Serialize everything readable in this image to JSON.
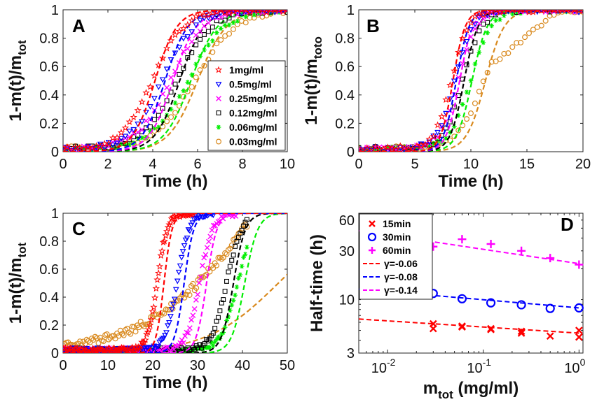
{
  "chart_data": [
    {
      "panel": "A",
      "type": "scatter",
      "xlabel": "Time (h)",
      "ylabel_main": "1-m(t)/m",
      "ylabel_sub": "tot",
      "xlim": [
        0,
        10
      ],
      "ylim": [
        0,
        1
      ],
      "xticks": [
        0,
        2,
        4,
        6,
        8,
        10
      ],
      "yticks": [
        0,
        0.2,
        0.4,
        0.6,
        0.8,
        1
      ],
      "xtick_labels": [
        "0",
        "2",
        "4",
        "6",
        "8",
        "10"
      ],
      "ytick_labels": [
        "0",
        "0.2",
        "0.4",
        "0.6",
        "0.8",
        "1"
      ],
      "legend_position": "right",
      "series": [
        {
          "name": "1mg/ml",
          "color": "#ff0000",
          "marker": "star",
          "half_time": 4.0,
          "k": 1.45
        },
        {
          "name": "0.5mg/ml",
          "color": "#0000ff",
          "marker": "triangle-down",
          "half_time": 4.45,
          "k": 1.4
        },
        {
          "name": "0.25mg/ml",
          "color": "#ff00ff",
          "marker": "x",
          "half_time": 4.8,
          "k": 1.35
        },
        {
          "name": "0.12mg/ml",
          "color": "#000000",
          "marker": "square",
          "half_time": 5.1,
          "k": 1.3
        },
        {
          "name": "0.06mg/ml",
          "color": "#00ee00",
          "marker": "asterisk",
          "half_time": 5.6,
          "k": 1.2
        },
        {
          "name": "0.03mg/ml",
          "color": "#d98a1f",
          "marker": "circle",
          "half_time": 5.9,
          "k": 1.1
        }
      ]
    },
    {
      "panel": "B",
      "type": "scatter",
      "xlabel": "Time (h)",
      "ylabel_main": "1-m(t)/m",
      "ylabel_sub": "toto",
      "xlim": [
        0,
        20
      ],
      "ylim": [
        0,
        1
      ],
      "xticks": [
        0,
        5,
        10,
        15,
        20
      ],
      "yticks": [
        0,
        0.2,
        0.4,
        0.6,
        0.8,
        1
      ],
      "xtick_labels": [
        "0",
        "5",
        "10",
        "15",
        "20"
      ],
      "ytick_labels": [
        "0",
        "0.2",
        "0.4",
        "0.6",
        "0.8",
        "1"
      ],
      "series": [
        {
          "name": "1mg/ml",
          "color": "#ff0000",
          "marker": "star",
          "half_time": 8.3,
          "k": 1.3
        },
        {
          "name": "0.5mg/ml",
          "color": "#0000ff",
          "marker": "triangle-down",
          "half_time": 8.6,
          "k": 1.25
        },
        {
          "name": "0.25mg/ml",
          "color": "#ff00ff",
          "marker": "x",
          "half_time": 8.9,
          "k": 1.2
        },
        {
          "name": "0.12mg/ml",
          "color": "#000000",
          "marker": "square",
          "half_time": 9.3,
          "k": 1.15
        },
        {
          "name": "0.06mg/ml",
          "color": "#00ee00",
          "marker": "asterisk",
          "half_time": 10.0,
          "k": 1.05
        },
        {
          "name": "0.03mg/ml",
          "color": "#d98a1f",
          "marker": "circle",
          "half_time": 11.2,
          "k": 0.85
        }
      ]
    },
    {
      "panel": "C",
      "type": "scatter",
      "xlabel": "Time (h)",
      "ylabel_main": "1-m(t)/m",
      "ylabel_sub": "tot",
      "xlim": [
        0,
        50
      ],
      "ylim": [
        0,
        1
      ],
      "xticks": [
        0,
        10,
        20,
        30,
        40,
        50
      ],
      "yticks": [
        0,
        0.2,
        0.4,
        0.6,
        0.8,
        1
      ],
      "xtick_labels": [
        "0",
        "10",
        "20",
        "30",
        "40",
        "50"
      ],
      "ytick_labels": [
        "0",
        "0.2",
        "0.4",
        "0.6",
        "0.8",
        "1"
      ],
      "series": [
        {
          "name": "1mg/ml",
          "color": "#ff0000",
          "marker": "star",
          "half_time": 21.0,
          "k": 0.9
        },
        {
          "name": "0.5mg/ml",
          "color": "#0000ff",
          "marker": "triangle-down",
          "half_time": 25.5,
          "k": 0.75
        },
        {
          "name": "0.25mg/ml",
          "color": "#ff00ff",
          "marker": "x",
          "half_time": 30.5,
          "k": 0.7
        },
        {
          "name": "0.12mg/ml",
          "color": "#000000",
          "marker": "square",
          "half_time": 36.5,
          "k": 0.6
        },
        {
          "name": "0.06mg/ml",
          "color": "#00ee00",
          "marker": "asterisk",
          "half_time": 39.0,
          "k": 0.55
        },
        {
          "name": "0.03mg/ml",
          "color": "#d98a1f",
          "marker": "circle",
          "half_time": 36.0,
          "k": 0.1
        }
      ]
    },
    {
      "panel": "D",
      "type": "scatter",
      "xscale": "log",
      "yscale": "log",
      "xlabel": "m",
      "xlabel_sub": "tot",
      "xlabel_tail": " (mg/ml)",
      "ylabel": "Half-time (h)",
      "xlim": [
        0.005,
        1.1
      ],
      "ylim": [
        3,
        70
      ],
      "xticks": [
        0.01,
        0.1,
        1
      ],
      "xtick_labels": [
        "10",
        "10",
        "10"
      ],
      "xtick_exponents": [
        "-2",
        "-1",
        "0"
      ],
      "yticks": [
        3,
        10,
        30,
        60
      ],
      "ytick_labels": [
        "3",
        "10",
        "30",
        "60"
      ],
      "legend_position": "top-left",
      "series": [
        {
          "name": "15min",
          "color": "#ff0000",
          "marker": "x",
          "x": [
            0.03,
            0.03,
            0.06,
            0.06,
            0.12,
            0.12,
            0.25,
            0.25,
            0.5,
            1,
            1
          ],
          "y": [
            5.8,
            5.2,
            5.4,
            5.5,
            5.1,
            5.2,
            4.9,
            4.7,
            4.4,
            5.0,
            4.3
          ]
        },
        {
          "name": "30min",
          "color": "#0000ff",
          "marker": "circle",
          "x": [
            0.03,
            0.06,
            0.12,
            0.25,
            0.5,
            1
          ],
          "y": [
            11.5,
            10.2,
            9.3,
            8.9,
            8.2,
            8.3
          ]
        },
        {
          "name": "60min",
          "color": "#ff00ff",
          "marker": "plus",
          "x": [
            0.03,
            0.06,
            0.12,
            0.25,
            0.5,
            1
          ],
          "y": [
            33,
            39,
            35,
            30,
            25.5,
            22
          ]
        }
      ],
      "fits": [
        {
          "label": "γ=-0.06",
          "color": "#ff0000",
          "gamma": -0.06,
          "y_at_1": 4.7
        },
        {
          "label": "γ=-0.08",
          "color": "#0000ff",
          "gamma": -0.08,
          "y_at_1": 8.3
        },
        {
          "label": "γ=-0.14",
          "color": "#ff00ff",
          "gamma": -0.14,
          "y_at_1": 22.5
        }
      ]
    }
  ]
}
